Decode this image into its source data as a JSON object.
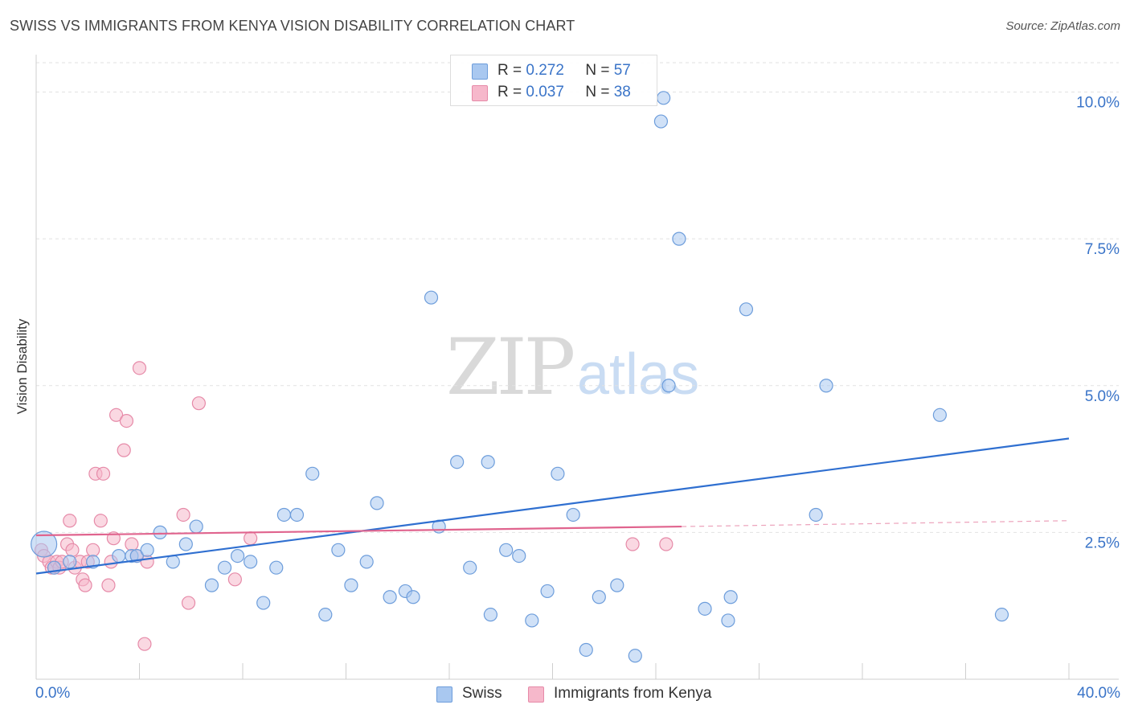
{
  "title": "SWISS VS IMMIGRANTS FROM KENYA VISION DISABILITY CORRELATION CHART",
  "source": "Source: ZipAtlas.com",
  "watermark": {
    "zip": "ZIP",
    "atlas": "atlas"
  },
  "legend_top": {
    "rows": [
      {
        "r_label": "R =",
        "r_value": "0.272",
        "n_label": "N =",
        "n_value": "57"
      },
      {
        "r_label": "R =",
        "r_value": "0.037",
        "n_label": "N =",
        "n_value": "38"
      }
    ]
  },
  "bottom_legend": [
    "Swiss",
    "Immigrants from Kenya"
  ],
  "colors": {
    "swiss_fill": "#a9c8f0",
    "swiss_stroke": "#6d9ddb",
    "swiss_line": "#2f6fd0",
    "kenya_fill": "#f6b8cb",
    "kenya_stroke": "#e68aa8",
    "kenya_line": "#e0648e",
    "tick_label": "#3a74c8",
    "grid": "#e2e2e2"
  },
  "chart_data": {
    "type": "scatter",
    "title": "SWISS VS IMMIGRANTS FROM KENYA VISION DISABILITY CORRELATION CHART",
    "xlabel": "",
    "ylabel": "Vision Disability",
    "xlim": [
      0,
      40
    ],
    "ylim": [
      0,
      10.5
    ],
    "x_tick_labels": [
      "0.0%",
      "40.0%"
    ],
    "y_ticks": [
      2.5,
      5.0,
      7.5,
      10.0
    ],
    "y_tick_labels": [
      "2.5%",
      "5.0%",
      "7.5%",
      "10.0%"
    ],
    "grid": "horizontal dashed",
    "series": [
      {
        "name": "Swiss",
        "R": 0.272,
        "N": 57,
        "points": [
          [
            0.3,
            2.3
          ],
          [
            0.7,
            1.9
          ],
          [
            1.3,
            2.0
          ],
          [
            2.2,
            2.0
          ],
          [
            3.2,
            2.1
          ],
          [
            3.7,
            2.1
          ],
          [
            3.9,
            2.1
          ],
          [
            4.3,
            2.2
          ],
          [
            4.8,
            2.5
          ],
          [
            5.3,
            2.0
          ],
          [
            5.8,
            2.3
          ],
          [
            6.2,
            2.6
          ],
          [
            6.8,
            1.6
          ],
          [
            7.3,
            1.9
          ],
          [
            7.8,
            2.1
          ],
          [
            8.3,
            2.0
          ],
          [
            8.8,
            1.3
          ],
          [
            9.3,
            1.9
          ],
          [
            9.6,
            2.8
          ],
          [
            10.1,
            2.8
          ],
          [
            10.7,
            3.5
          ],
          [
            11.2,
            1.1
          ],
          [
            11.7,
            2.2
          ],
          [
            12.2,
            1.6
          ],
          [
            12.8,
            2.0
          ],
          [
            13.2,
            3.0
          ],
          [
            13.7,
            1.4
          ],
          [
            14.3,
            1.5
          ],
          [
            14.6,
            1.4
          ],
          [
            15.3,
            6.5
          ],
          [
            15.6,
            2.6
          ],
          [
            16.3,
            3.7
          ],
          [
            16.8,
            1.9
          ],
          [
            17.5,
            3.7
          ],
          [
            17.6,
            1.1
          ],
          [
            18.2,
            2.2
          ],
          [
            18.7,
            2.1
          ],
          [
            19.2,
            1.0
          ],
          [
            19.8,
            1.5
          ],
          [
            20.2,
            3.5
          ],
          [
            20.8,
            2.8
          ],
          [
            21.3,
            0.5
          ],
          [
            21.8,
            1.4
          ],
          [
            22.5,
            1.6
          ],
          [
            23.2,
            0.4
          ],
          [
            24.2,
            9.5
          ],
          [
            24.3,
            9.9
          ],
          [
            24.9,
            7.5
          ],
          [
            25.9,
            1.2
          ],
          [
            26.8,
            1.0
          ],
          [
            26.9,
            1.4
          ],
          [
            27.5,
            6.3
          ],
          [
            30.2,
            2.8
          ],
          [
            30.6,
            5.0
          ],
          [
            35.0,
            4.5
          ],
          [
            37.4,
            1.1
          ],
          [
            24.5,
            5.0
          ]
        ],
        "trend": {
          "x": [
            0,
            40
          ],
          "y": [
            1.8,
            4.1
          ]
        }
      },
      {
        "name": "Immigrants from Kenya",
        "R": 0.037,
        "N": 38,
        "points": [
          [
            0.2,
            2.2
          ],
          [
            0.3,
            2.1
          ],
          [
            0.5,
            2.0
          ],
          [
            0.6,
            1.9
          ],
          [
            0.7,
            1.9
          ],
          [
            0.8,
            2.0
          ],
          [
            0.9,
            1.9
          ],
          [
            1.0,
            2.0
          ],
          [
            1.2,
            2.3
          ],
          [
            1.3,
            2.7
          ],
          [
            1.4,
            2.2
          ],
          [
            1.5,
            1.9
          ],
          [
            1.7,
            2.0
          ],
          [
            1.8,
            1.7
          ],
          [
            1.9,
            1.6
          ],
          [
            2.0,
            2.0
          ],
          [
            2.2,
            2.2
          ],
          [
            2.3,
            3.5
          ],
          [
            2.5,
            2.7
          ],
          [
            2.6,
            3.5
          ],
          [
            2.8,
            1.6
          ],
          [
            2.9,
            2.0
          ],
          [
            3.0,
            2.4
          ],
          [
            3.1,
            4.5
          ],
          [
            3.4,
            3.9
          ],
          [
            3.5,
            4.4
          ],
          [
            3.7,
            2.3
          ],
          [
            3.9,
            2.1
          ],
          [
            4.0,
            5.3
          ],
          [
            4.2,
            0.6
          ],
          [
            4.3,
            2.0
          ],
          [
            5.7,
            2.8
          ],
          [
            5.9,
            1.3
          ],
          [
            6.3,
            4.7
          ],
          [
            7.7,
            1.7
          ],
          [
            8.3,
            2.4
          ],
          [
            23.1,
            2.3
          ],
          [
            24.4,
            2.3
          ]
        ],
        "trend": {
          "x": [
            0,
            25
          ],
          "y": [
            2.45,
            2.6
          ]
        },
        "trend_extension": {
          "x": [
            25,
            40
          ],
          "y": [
            2.6,
            2.7
          ]
        }
      }
    ]
  }
}
